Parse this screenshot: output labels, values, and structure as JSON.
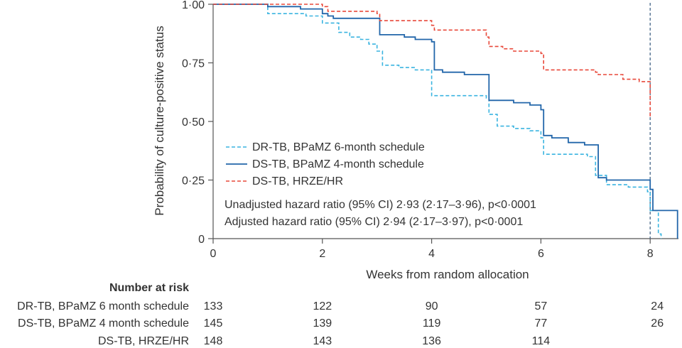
{
  "chart_data": {
    "type": "line",
    "subtype": "kaplan-meier step",
    "xlabel": "Weeks from random allocation",
    "ylabel": "Probability of culture-positive status",
    "xlim": [
      0,
      8.6
    ],
    "ylim": [
      0,
      1
    ],
    "x_ticks": [
      0,
      2,
      4,
      6,
      8
    ],
    "x_tick_labels": [
      "0",
      "2",
      "4",
      "6",
      "8"
    ],
    "y_ticks": [
      0,
      0.25,
      0.5,
      0.75,
      1.0
    ],
    "y_tick_labels": [
      "0",
      "0·25",
      "0·50",
      "0·75",
      "1·00"
    ],
    "reference_line_x": 8,
    "colors": {
      "dr_tb": "#3ab4e0",
      "ds_tb_bpamz": "#2266aa",
      "ds_tb_hrze": "#e8483a",
      "reference": "#446688",
      "axis": "#555555"
    },
    "series": [
      {
        "name": "DR-TB, BPaMZ 6-month schedule",
        "style": "dashed",
        "color_key": "dr_tb",
        "points": [
          [
            0,
            1.0
          ],
          [
            0.6,
            1.0
          ],
          [
            1.0,
            0.96
          ],
          [
            1.7,
            0.95
          ],
          [
            2.0,
            0.92
          ],
          [
            2.3,
            0.88
          ],
          [
            2.5,
            0.86
          ],
          [
            2.7,
            0.85
          ],
          [
            2.85,
            0.83
          ],
          [
            3.0,
            0.8
          ],
          [
            3.1,
            0.74
          ],
          [
            3.4,
            0.73
          ],
          [
            3.7,
            0.72
          ],
          [
            4.0,
            0.61
          ],
          [
            4.5,
            0.61
          ],
          [
            5.0,
            0.6
          ],
          [
            5.05,
            0.53
          ],
          [
            5.2,
            0.48
          ],
          [
            5.5,
            0.47
          ],
          [
            5.8,
            0.46
          ],
          [
            6.0,
            0.43
          ],
          [
            6.05,
            0.36
          ],
          [
            6.5,
            0.36
          ],
          [
            6.85,
            0.35
          ],
          [
            7.0,
            0.27
          ],
          [
            7.2,
            0.23
          ],
          [
            7.6,
            0.22
          ],
          [
            7.95,
            0.2
          ],
          [
            8.0,
            0.12
          ],
          [
            8.15,
            0.02
          ],
          [
            8.2,
            0.0
          ]
        ]
      },
      {
        "name": "DS-TB, BPaMZ 4-month schedule",
        "style": "solid",
        "color_key": "ds_tb_bpamz",
        "points": [
          [
            0,
            1.0
          ],
          [
            1.0,
            0.99
          ],
          [
            1.6,
            0.98
          ],
          [
            2.0,
            0.96
          ],
          [
            2.1,
            0.95
          ],
          [
            2.2,
            0.94
          ],
          [
            3.0,
            0.94
          ],
          [
            3.05,
            0.87
          ],
          [
            3.5,
            0.86
          ],
          [
            3.7,
            0.85
          ],
          [
            4.0,
            0.84
          ],
          [
            4.05,
            0.72
          ],
          [
            4.2,
            0.71
          ],
          [
            4.5,
            0.71
          ],
          [
            4.6,
            0.7
          ],
          [
            5.0,
            0.7
          ],
          [
            5.05,
            0.59
          ],
          [
            5.3,
            0.59
          ],
          [
            5.5,
            0.58
          ],
          [
            5.8,
            0.57
          ],
          [
            6.0,
            0.55
          ],
          [
            6.05,
            0.44
          ],
          [
            6.2,
            0.43
          ],
          [
            6.5,
            0.41
          ],
          [
            6.8,
            0.4
          ],
          [
            7.0,
            0.4
          ],
          [
            7.05,
            0.26
          ],
          [
            7.2,
            0.25
          ],
          [
            7.95,
            0.25
          ],
          [
            8.0,
            0.21
          ],
          [
            8.05,
            0.12
          ],
          [
            8.45,
            0.12
          ],
          [
            8.5,
            0.0
          ]
        ]
      },
      {
        "name": "DS-TB, HRZE/HR",
        "style": "dashed",
        "color_key": "ds_tb_hrze",
        "points": [
          [
            0,
            1.0
          ],
          [
            2.0,
            0.99
          ],
          [
            2.1,
            0.97
          ],
          [
            2.8,
            0.97
          ],
          [
            3.0,
            0.96
          ],
          [
            3.05,
            0.93
          ],
          [
            3.5,
            0.93
          ],
          [
            4.0,
            0.91
          ],
          [
            4.05,
            0.89
          ],
          [
            4.5,
            0.89
          ],
          [
            5.0,
            0.86
          ],
          [
            5.05,
            0.82
          ],
          [
            5.3,
            0.81
          ],
          [
            5.5,
            0.8
          ],
          [
            5.9,
            0.8
          ],
          [
            6.0,
            0.79
          ],
          [
            6.05,
            0.72
          ],
          [
            6.5,
            0.72
          ],
          [
            7.0,
            0.71
          ],
          [
            7.05,
            0.7
          ],
          [
            7.3,
            0.7
          ],
          [
            7.5,
            0.68
          ],
          [
            7.8,
            0.67
          ],
          [
            8.0,
            0.64
          ],
          [
            8.0,
            0.52
          ]
        ]
      }
    ],
    "legend": {
      "position": "lower-left",
      "entries": [
        "DR-TB, BPaMZ 6-month schedule",
        "DS-TB, BPaMZ 4-month schedule",
        "DS-TB, HRZE/HR"
      ],
      "annotations": [
        "Unadjusted hazard ratio (95% CI) 2·93 (2·17–3·96), p<0·0001",
        "Adjusted hazard ratio (95% CI) 2·94 (2·17–3·97), p<0·0001"
      ]
    },
    "risk_table": {
      "title": "Number at risk",
      "timepoints": [
        0,
        2,
        4,
        6,
        8
      ],
      "rows": [
        {
          "label": "DR-TB, BPaMZ 6 month schedule",
          "values": [
            "133",
            "122",
            "90",
            "57",
            "24"
          ]
        },
        {
          "label": "DS-TB, BPaMZ 4 month schedule",
          "values": [
            "145",
            "139",
            "119",
            "77",
            "26"
          ]
        },
        {
          "label": "DS-TB, HRZE/HR",
          "values": [
            "148",
            "143",
            "136",
            "114",
            ""
          ]
        }
      ]
    }
  }
}
